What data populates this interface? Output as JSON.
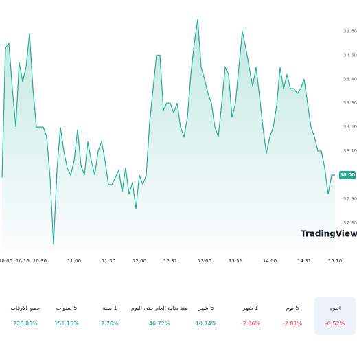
{
  "chart_data": {
    "type": "area",
    "values": [
      37.99,
      38.53,
      38.55,
      38.36,
      38.2,
      38.47,
      38.39,
      38.45,
      38.59,
      38.36,
      38.2,
      38.2,
      38.2,
      38.16,
      37.99,
      37.71,
      38.02,
      38.2,
      38.1,
      38.03,
      38.0,
      38.06,
      38.19,
      38.04,
      38.0,
      38.14,
      38.06,
      38.0,
      38.1,
      38.14,
      38.06,
      37.96,
      37.96,
      37.99,
      38.02,
      37.93,
      38.03,
      37.92,
      37.97,
      37.86,
      38.0,
      37.96,
      38.0,
      38.22,
      38.36,
      38.5,
      38.5,
      38.27,
      38.3,
      38.3,
      38.26,
      38.3,
      38.2,
      38.16,
      38.24,
      38.42,
      38.55,
      38.65,
      38.45,
      38.4,
      38.34,
      38.3,
      38.2,
      38.16,
      38.3,
      38.45,
      38.42,
      38.24,
      38.3,
      38.45,
      38.6,
      38.53,
      38.45,
      38.37,
      38.45,
      38.33,
      38.2,
      38.09,
      38.16,
      38.2,
      38.29,
      38.45,
      38.36,
      38.42,
      38.36,
      38.36,
      38.34,
      38.36,
      38.4,
      38.3,
      38.2,
      38.16,
      38.1,
      38.1,
      38.03,
      37.92,
      38.0,
      38.0
    ],
    "color": "#22ab94",
    "xlim": [
      0,
      97
    ],
    "xticks": [
      {
        "value": 1,
        "label": "10:00"
      },
      {
        "value": 6,
        "label": "10:15"
      },
      {
        "value": 11,
        "label": "10:30"
      },
      {
        "value": 21,
        "label": "11:00"
      },
      {
        "value": 31,
        "label": "11:30"
      },
      {
        "value": 40,
        "label": "12:00"
      },
      {
        "value": 49,
        "label": "12:31"
      },
      {
        "value": 59,
        "label": "13:00"
      },
      {
        "value": 68,
        "label": "13:31"
      },
      {
        "value": 78,
        "label": "14:00"
      },
      {
        "value": 88,
        "label": "14:31"
      },
      {
        "value": 97,
        "label": "15:10"
      }
    ],
    "ylim": [
      37.685,
      38.73
    ],
    "yticks": [
      {
        "value": 37.8,
        "label": "37.80"
      },
      {
        "value": 37.9,
        "label": "37.90"
      },
      {
        "value": 38.1,
        "label": "38.10"
      },
      {
        "value": 38.2,
        "label": "38.20"
      },
      {
        "value": 38.3,
        "label": "38.30"
      },
      {
        "value": 38.4,
        "label": "38.40"
      },
      {
        "value": 38.5,
        "label": "38.50"
      },
      {
        "value": 38.6,
        "label": "38.60"
      }
    ],
    "last_label": "38.00",
    "watermark": "TradingView"
  },
  "tabs": [
    {
      "label": "اليوم",
      "change": "-0.52%",
      "color": "#f23645",
      "selected": true
    },
    {
      "label": "5 يوم",
      "change": "-2.81%",
      "color": "#f23645"
    },
    {
      "label": "1 شهر",
      "change": "-2.56%",
      "color": "#f23645"
    },
    {
      "label": "6 شهر",
      "change": "10.14%",
      "color": "#089981"
    },
    {
      "label": "منذ بداية العام حتى اليوم",
      "change": "46.72%",
      "color": "#089981"
    },
    {
      "label": "1 سنة",
      "change": "2.70%",
      "color": "#089981"
    },
    {
      "label": "5 سنوات",
      "change": "151.15%",
      "color": "#089981"
    },
    {
      "label": "جميع الأوقات",
      "change": "226.83%",
      "color": "#089981"
    }
  ]
}
